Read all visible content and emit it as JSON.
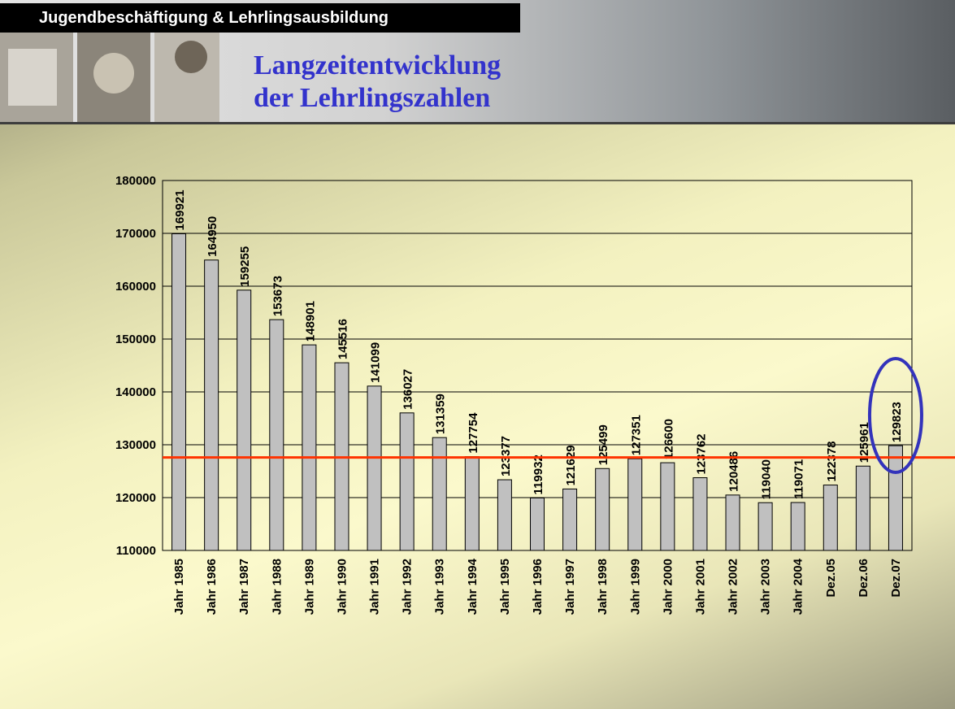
{
  "header": {
    "label": "Jugendbeschäftigung & Lehrlingsausbildung",
    "title_lines": [
      "Langzeitentwicklung",
      "der Lehrlingszahlen"
    ]
  },
  "chart_data": {
    "type": "bar",
    "categories": [
      "Jahr 1985",
      "Jahr 1986",
      "Jahr 1987",
      "Jahr 1988",
      "Jahr 1989",
      "Jahr 1990",
      "Jahr 1991",
      "Jahr 1992",
      "Jahr 1993",
      "Jahr 1994",
      "Jahr 1995",
      "Jahr 1996",
      "Jahr 1997",
      "Jahr 1998",
      "Jahr 1999",
      "Jahr 2000",
      "Jahr 2001",
      "Jahr 2002",
      "Jahr 2003",
      "Jahr 2004",
      "Dez.05",
      "Dez.06",
      "Dez.07"
    ],
    "values": [
      169921,
      164950,
      159255,
      153673,
      148901,
      145516,
      141099,
      136027,
      131359,
      127754,
      123377,
      119932,
      121629,
      125499,
      127351,
      126600,
      123762,
      120486,
      119040,
      119071,
      122378,
      125961,
      129823
    ],
    "color": "#c0c0c0",
    "ylim": [
      110000,
      180000
    ],
    "yticks": [
      110000,
      120000,
      130000,
      140000,
      150000,
      160000,
      170000,
      180000
    ],
    "grid": true,
    "reference_line": {
      "value": 127600,
      "color": "#ff3300"
    }
  }
}
